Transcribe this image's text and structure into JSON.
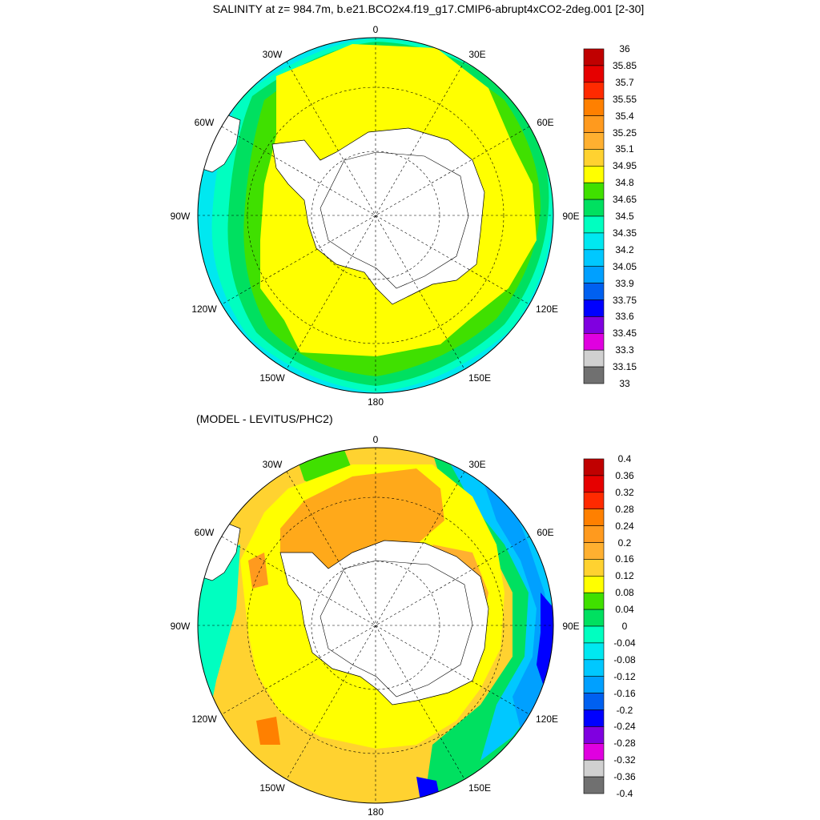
{
  "titles": {
    "main": "SALINITY at z= 984.7m, b.e21.BCO2x4.f19_g17.CMIP6-abrupt4xCO2-2deg.001 [2-30]",
    "sub": "(MODEL - LEVITUS/PHC2)"
  },
  "map": {
    "projection": "south polar stereographic",
    "longitude_labels": [
      "0",
      "30E",
      "60E",
      "90E",
      "120E",
      "150E",
      "180",
      "150W",
      "120W",
      "90W",
      "60W",
      "30W"
    ]
  },
  "colorbar_top": {
    "labels": [
      "36",
      "35.85",
      "35.7",
      "35.55",
      "35.4",
      "35.25",
      "35.1",
      "34.95",
      "34.8",
      "34.65",
      "34.5",
      "34.35",
      "34.2",
      "34.05",
      "33.9",
      "33.75",
      "33.6",
      "33.45",
      "33.3",
      "33.15",
      "33"
    ],
    "colors": [
      "#c00000",
      "#e60000",
      "#ff2a00",
      "#ff8000",
      "#ff9a1e",
      "#ffb030",
      "#ffd230",
      "#ffff00",
      "#40e000",
      "#00e060",
      "#00ffc0",
      "#00e8f0",
      "#00c8ff",
      "#00a0ff",
      "#0060f0",
      "#0000ff",
      "#8000e0",
      "#e000e0",
      "#d0d0d0",
      "#707070"
    ]
  },
  "colorbar_bottom": {
    "labels": [
      "0.4",
      "0.36",
      "0.32",
      "0.28",
      "0.24",
      "0.2",
      "0.16",
      "0.12",
      "0.08",
      "0.04",
      "0",
      "-0.04",
      "-0.08",
      "-0.12",
      "-0.16",
      "-0.2",
      "-0.24",
      "-0.28",
      "-0.32",
      "-0.36",
      "-0.4"
    ],
    "colors": [
      "#c00000",
      "#e60000",
      "#ff2a00",
      "#ff8000",
      "#ff9a1e",
      "#ffb030",
      "#ffd230",
      "#ffff00",
      "#40e000",
      "#00e060",
      "#00ffc0",
      "#00e8f0",
      "#00c8ff",
      "#00a0ff",
      "#0060f0",
      "#0000ff",
      "#8000e0",
      "#e000e0",
      "#d0d0d0",
      "#707070"
    ]
  }
}
